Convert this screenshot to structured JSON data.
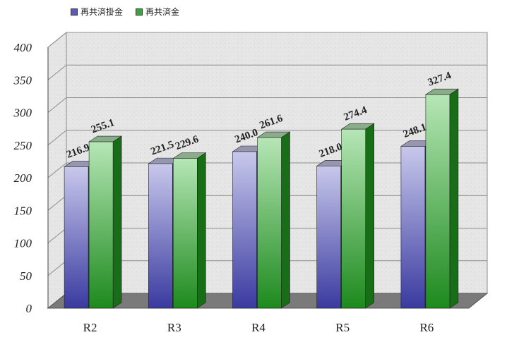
{
  "chart_data": {
    "type": "bar",
    "categories": [
      "R2",
      "R3",
      "R4",
      "R5",
      "R6"
    ],
    "series": [
      {
        "name": "再共済掛金",
        "values": [
          216.9,
          221.5,
          240.0,
          218.0,
          248.1
        ],
        "value_labels": [
          "216.9",
          "221.5",
          "240.0",
          "218.0",
          "248.1"
        ]
      },
      {
        "name": "再共済金",
        "values": [
          255.1,
          229.6,
          261.6,
          274.4,
          327.4
        ],
        "value_labels": [
          "255.1",
          "229.6",
          "261.6",
          "274.4",
          "327.4"
        ]
      }
    ],
    "yticks": [
      "0",
      "50",
      "100",
      "150",
      "200",
      "250",
      "300",
      "350",
      "400"
    ],
    "ylim": [
      0,
      400
    ],
    "grid": true,
    "legend_position": "top-left",
    "colors": {
      "series1_light": "#c8c8ec",
      "series1_dark": "#3a3aa0",
      "series2_light": "#b6e6b6",
      "series2_dark": "#1d8a1d",
      "wall": "#e4e4e4",
      "floor": "#7a7a7a"
    }
  }
}
